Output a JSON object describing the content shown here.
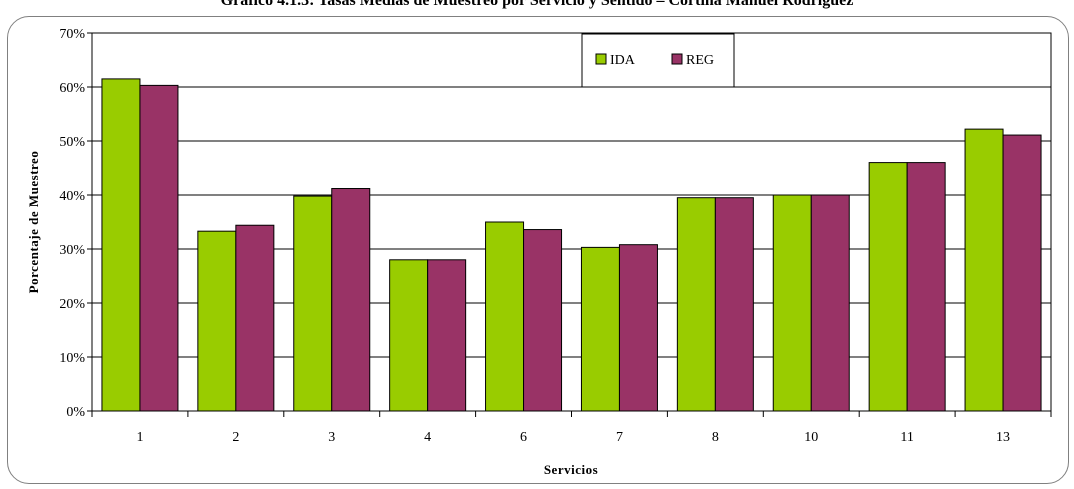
{
  "chart_data": {
    "type": "bar",
    "title": "Gráfico 4.1.3: Tasas Medias de Muestreo por Servicio y Sentido – Cortina Manuel Rodríguez",
    "xlabel": "Servicios",
    "ylabel": "Porcentaje de Muestreo",
    "categories": [
      "1",
      "2",
      "3",
      "4",
      "6",
      "7",
      "8",
      "10",
      "11",
      "13"
    ],
    "series": [
      {
        "name": "IDA",
        "color": "#99CC00",
        "values": [
          61.5,
          33.3,
          39.8,
          28.0,
          35.0,
          30.3,
          39.5,
          40.0,
          46.0,
          52.2
        ]
      },
      {
        "name": "REG",
        "color": "#993366",
        "values": [
          60.3,
          34.4,
          41.2,
          28.0,
          33.6,
          30.8,
          39.5,
          40.0,
          46.0,
          51.1
        ]
      }
    ],
    "ylim": [
      0,
      70
    ],
    "yticks": [
      0,
      10,
      20,
      30,
      40,
      50,
      60,
      70
    ],
    "ytick_labels": [
      "0%",
      "10%",
      "20%",
      "30%",
      "40%",
      "50%",
      "60%",
      "70%"
    ],
    "grid": true,
    "legend_position": "top-center"
  }
}
